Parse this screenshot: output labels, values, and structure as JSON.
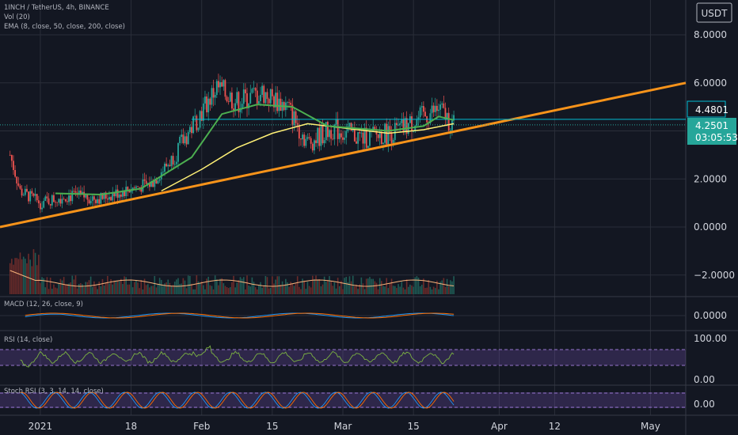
{
  "header": {
    "symbol_line": "1INCH / TetherUS, 4h, BINANCE",
    "vol_label": "Vol (20)",
    "ema_label": "EMA (8, close, 50, close, 200, close)"
  },
  "currency_button": "USDT",
  "price_tags": {
    "resistance": "4.4801",
    "last_price": "4.2501",
    "countdown": "03:05:53"
  },
  "panes": {
    "macd_label": "MACD (12, 26, close, 9)",
    "macd_tick": "0.0000",
    "rsi_label": "RSI (14, close)",
    "rsi_ticks": [
      "100.00",
      "0.00"
    ],
    "stoch_label": "Stoch RSI (3, 3, 14, 14, close)",
    "stoch_tick": "0.00"
  },
  "colors": {
    "background": "#131722",
    "up": "#26a69a",
    "down": "#ef5350",
    "trendline": "#f7931a",
    "ema_fast": "#4caf50",
    "ema_slow": "#fff176",
    "resistance": "#00bcd4",
    "rsi_band": "#7e57c2"
  },
  "chart_data": {
    "type": "candlestick",
    "title": "1INCH / TetherUS, 4h, BINANCE",
    "y_ticks": [
      8,
      6,
      4,
      2,
      0,
      -2
    ],
    "y_tick_labels": [
      "8.0000",
      "6.0000",
      "2.0000",
      "0.0000",
      "−2.0000"
    ],
    "x_tick_labels": [
      "2021",
      "18",
      "Feb",
      "15",
      "Mar",
      "15",
      "Apr",
      "12",
      "May"
    ],
    "ylim": [
      -2.8,
      9.1
    ],
    "price_path": [
      {
        "date": "2020-12-25",
        "price": 3.0
      },
      {
        "date": "2020-12-27",
        "price": 1.5
      },
      {
        "date": "2020-12-31",
        "price": 1.0
      },
      {
        "date": "2021-01-05",
        "price": 1.3
      },
      {
        "date": "2021-01-12",
        "price": 1.2
      },
      {
        "date": "2021-01-18",
        "price": 1.6
      },
      {
        "date": "2021-01-22",
        "price": 1.8
      },
      {
        "date": "2021-01-26",
        "price": 2.8
      },
      {
        "date": "2021-01-31",
        "price": 4.5
      },
      {
        "date": "2021-02-04",
        "price": 5.8
      },
      {
        "date": "2021-02-08",
        "price": 5.2
      },
      {
        "date": "2021-02-13",
        "price": 5.6
      },
      {
        "date": "2021-02-18",
        "price": 5.0
      },
      {
        "date": "2021-02-22",
        "price": 3.5
      },
      {
        "date": "2021-02-27",
        "price": 4.1
      },
      {
        "date": "2021-03-05",
        "price": 3.7
      },
      {
        "date": "2021-03-12",
        "price": 4.0
      },
      {
        "date": "2021-03-17",
        "price": 4.6
      },
      {
        "date": "2021-03-20",
        "price": 4.9
      },
      {
        "date": "2021-03-23",
        "price": 4.25
      }
    ],
    "ema_50": [
      {
        "date": "2021-01-03",
        "price": 1.4
      },
      {
        "date": "2021-01-12",
        "price": 1.35
      },
      {
        "date": "2021-01-20",
        "price": 1.6
      },
      {
        "date": "2021-01-30",
        "price": 2.9
      },
      {
        "date": "2021-02-05",
        "price": 4.7
      },
      {
        "date": "2021-02-12",
        "price": 5.1
      },
      {
        "date": "2021-02-19",
        "price": 5.0
      },
      {
        "date": "2021-02-26",
        "price": 4.2
      },
      {
        "date": "2021-03-10",
        "price": 4.0
      },
      {
        "date": "2021-03-17",
        "price": 4.2
      },
      {
        "date": "2021-03-20",
        "price": 4.6
      },
      {
        "date": "2021-03-23",
        "price": 4.45
      }
    ],
    "ema_200": [
      {
        "date": "2021-01-24",
        "price": 1.5
      },
      {
        "date": "2021-02-01",
        "price": 2.4
      },
      {
        "date": "2021-02-08",
        "price": 3.3
      },
      {
        "date": "2021-02-15",
        "price": 3.9
      },
      {
        "date": "2021-02-22",
        "price": 4.3
      },
      {
        "date": "2021-03-02",
        "price": 4.1
      },
      {
        "date": "2021-03-10",
        "price": 3.9
      },
      {
        "date": "2021-03-17",
        "price": 4.05
      },
      {
        "date": "2021-03-23",
        "price": 4.3
      }
    ],
    "trendline": [
      {
        "date": "2020-12-23",
        "price": 0.0
      },
      {
        "date": "2021-05-08",
        "price": 6.0
      }
    ],
    "resistance_level": 4.4801,
    "last_price": 4.2501
  }
}
